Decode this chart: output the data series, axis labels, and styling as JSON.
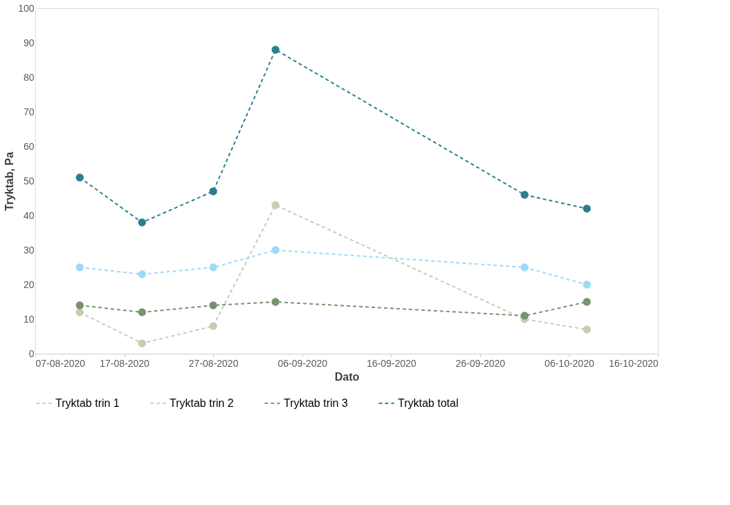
{
  "chart_data": {
    "type": "line",
    "xlabel": "Dato",
    "ylabel": "Tryktab, Pa",
    "x": [
      "2020-08-12",
      "2020-08-19",
      "2020-08-27",
      "2020-09-03",
      "2020-10-01",
      "2020-10-08"
    ],
    "series": [
      {
        "name": "Tryktab trin 1",
        "color": "#cbcbb4",
        "values": [
          12,
          3,
          8,
          43,
          10,
          7
        ]
      },
      {
        "name": "Tryktab trin 2",
        "color": "#9ddaf8",
        "values": [
          25,
          23,
          25,
          30,
          25,
          20
        ]
      },
      {
        "name": "Tryktab trin 3",
        "color": "#76946e",
        "values": [
          14,
          12,
          14,
          15,
          11,
          15
        ]
      },
      {
        "name": "Tryktab total",
        "color": "#2b7f8e",
        "values": [
          51,
          38,
          47,
          88,
          46,
          42
        ]
      }
    ],
    "xlim": [
      "2020-08-07",
      "2020-10-16"
    ],
    "xticks": [
      {
        "value": "2020-08-07",
        "label": "07-08-2020"
      },
      {
        "value": "2020-08-17",
        "label": "17-08-2020"
      },
      {
        "value": "2020-08-27",
        "label": "27-08-2020"
      },
      {
        "value": "2020-09-06",
        "label": "06-09-2020"
      },
      {
        "value": "2020-09-16",
        "label": "16-09-2020"
      },
      {
        "value": "2020-09-26",
        "label": "26-09-2020"
      },
      {
        "value": "2020-10-06",
        "label": "06-10-2020"
      },
      {
        "value": "2020-10-16",
        "label": "16-10-2020"
      }
    ],
    "ylim": [
      0,
      100
    ],
    "yticks": [
      0,
      10,
      20,
      30,
      40,
      50,
      60,
      70,
      80,
      90,
      100
    ],
    "grid": false,
    "legend": "bottom",
    "marker": "circle",
    "line_style": "dashed"
  }
}
